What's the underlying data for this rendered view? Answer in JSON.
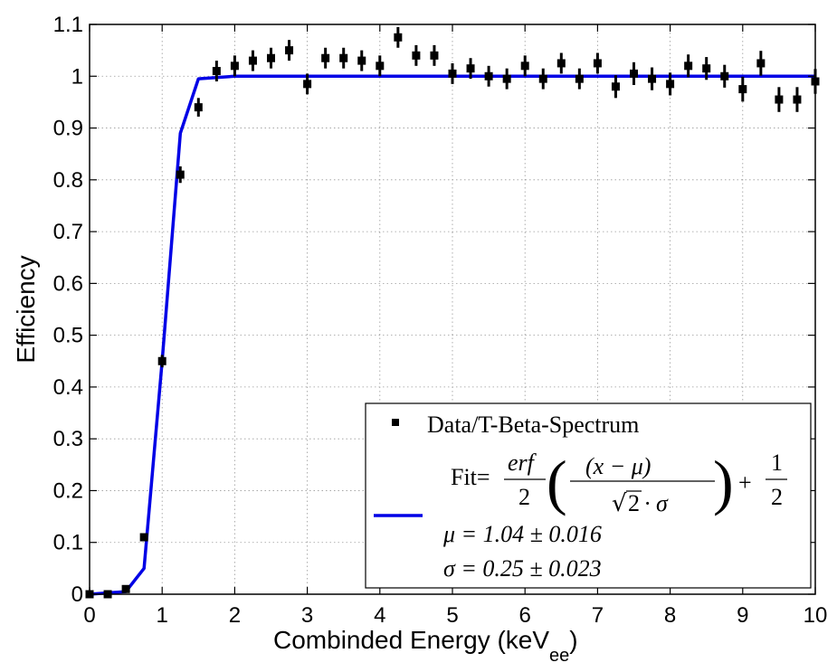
{
  "chart_data": {
    "type": "scatter",
    "xlabel": "Combinded Energy (keV",
    "xlabel_sub": "ee",
    "xlabel_close": ")",
    "ylabel": "Efficiency",
    "xlim": [
      0,
      10
    ],
    "ylim": [
      0,
      1.1
    ],
    "xticks": [
      0,
      1,
      2,
      3,
      4,
      5,
      6,
      7,
      8,
      9,
      10
    ],
    "xtick_labels": [
      "0",
      "1",
      "2",
      "3",
      "4",
      "5",
      "6",
      "7",
      "8",
      "9",
      "10"
    ],
    "yticks": [
      0,
      0.1,
      0.2,
      0.3,
      0.4,
      0.5,
      0.6,
      0.7,
      0.8,
      0.9,
      1,
      1.1
    ],
    "ytick_labels": [
      "0",
      "0.1",
      "0.2",
      "0.3",
      "0.4",
      "0.5",
      "0.6",
      "0.7",
      "0.8",
      "0.9",
      "1",
      "1.1"
    ],
    "grid": true,
    "legend_position": "bottom-right",
    "colors": {
      "data": "#000000",
      "fit": "#0000e6"
    },
    "series": [
      {
        "name": "Data/T-Beta-Spectrum",
        "kind": "points-with-error-bars",
        "x": [
          0,
          0.25,
          0.5,
          0.75,
          1.0,
          1.25,
          1.5,
          1.75,
          2.0,
          2.25,
          2.5,
          2.75,
          3.0,
          3.25,
          3.5,
          3.75,
          4.0,
          4.25,
          4.5,
          4.75,
          5.0,
          5.25,
          5.5,
          5.75,
          6.0,
          6.25,
          6.5,
          6.75,
          7.0,
          7.25,
          7.5,
          7.75,
          8.0,
          8.25,
          8.5,
          8.75,
          9.0,
          9.25,
          9.5,
          9.75,
          10.0
        ],
        "y": [
          0.0,
          0.0,
          0.01,
          0.11,
          0.45,
          0.81,
          0.94,
          1.01,
          1.02,
          1.03,
          1.035,
          1.05,
          0.985,
          1.035,
          1.035,
          1.03,
          1.02,
          1.075,
          1.04,
          1.04,
          1.005,
          1.015,
          1.0,
          0.995,
          1.02,
          0.995,
          1.025,
          0.995,
          1.025,
          0.98,
          1.005,
          0.995,
          0.985,
          1.02,
          1.015,
          1.0,
          0.975,
          1.025,
          0.955,
          0.955,
          0.99
        ],
        "err": [
          0.002,
          0.002,
          0.004,
          0.006,
          0.012,
          0.016,
          0.018,
          0.02,
          0.02,
          0.02,
          0.02,
          0.02,
          0.02,
          0.02,
          0.02,
          0.02,
          0.02,
          0.02,
          0.02,
          0.02,
          0.02,
          0.02,
          0.02,
          0.02,
          0.02,
          0.02,
          0.02,
          0.02,
          0.02,
          0.022,
          0.022,
          0.022,
          0.022,
          0.022,
          0.022,
          0.022,
          0.024,
          0.024,
          0.024,
          0.024,
          0.024
        ]
      },
      {
        "name": "Fit",
        "kind": "line",
        "x": [
          0,
          0.5,
          0.75,
          1.0,
          1.25,
          1.5,
          2.0,
          3,
          4,
          5,
          6,
          7,
          8,
          9,
          10
        ],
        "y": [
          0.0,
          0.005,
          0.05,
          0.45,
          0.89,
          0.995,
          1.0,
          1.0,
          1.0,
          1.0,
          1.0,
          1.0,
          1.0,
          1.0,
          1.0
        ]
      }
    ],
    "legend": {
      "data_label": "Data/T-Beta-Spectrum",
      "fit_label": "Fit=",
      "fit_formula": {
        "erf": "erf",
        "two": "2",
        "numerator": "(x − μ)",
        "sqrt2": "2",
        "sigma_tail": "· σ",
        "plus": "+",
        "one": "1",
        "half_den": "2"
      },
      "mu_line": "μ = 1.04 ± 0.016",
      "sigma_line": "σ = 0.25 ± 0.023"
    }
  }
}
